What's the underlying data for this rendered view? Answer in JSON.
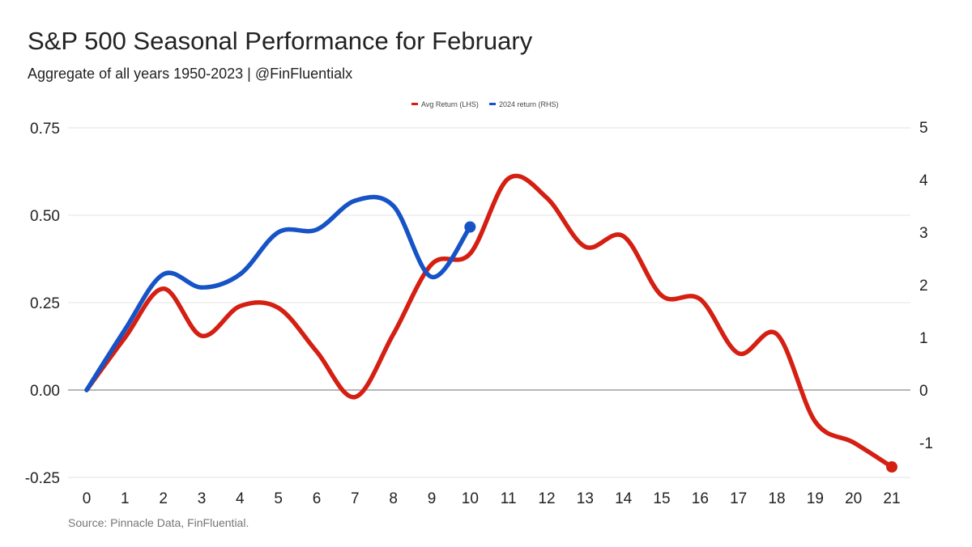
{
  "chart_data": {
    "type": "line",
    "title": "S&P 500 Seasonal Performance for February",
    "subtitle": "Aggregate of all years 1950-2023 | @FinFluentialx",
    "source": "Source: Pinnacle Data, FinFluential.",
    "legend_position": "top-center",
    "grid": true,
    "x": [
      0,
      1,
      2,
      3,
      4,
      5,
      6,
      7,
      8,
      9,
      10,
      11,
      12,
      13,
      14,
      15,
      16,
      17,
      18,
      19,
      20,
      21
    ],
    "x_ticks": [
      "0",
      "1",
      "2",
      "3",
      "4",
      "5",
      "6",
      "7",
      "8",
      "9",
      "10",
      "11",
      "12",
      "13",
      "14",
      "15",
      "16",
      "17",
      "18",
      "19",
      "20",
      "21"
    ],
    "xlim": [
      0,
      21
    ],
    "y_left": {
      "ylim": [
        -0.25,
        0.75
      ],
      "ticks": [
        -0.25,
        0,
        0.25,
        0.5,
        0.75
      ],
      "tick_labels": [
        "-0.25",
        "0.00",
        "0.25",
        "0.50",
        "0.75"
      ]
    },
    "y_right": {
      "ylim": [
        -1.5,
        5
      ],
      "ticks": [
        -1,
        0,
        1,
        2,
        3,
        4,
        5
      ],
      "tick_labels": [
        "-1",
        "0",
        "1",
        "2",
        "3",
        "4",
        "5"
      ]
    },
    "series": [
      {
        "name": "Avg Return (LHS)",
        "axis": "left",
        "color": "#d41f12",
        "x": [
          0,
          1,
          2,
          3,
          4,
          5,
          6,
          7,
          8,
          9,
          10,
          11,
          12,
          13,
          14,
          15,
          16,
          17,
          18,
          19,
          20,
          21
        ],
        "values": [
          0.0,
          0.15,
          0.29,
          0.155,
          0.24,
          0.235,
          0.11,
          -0.02,
          0.16,
          0.36,
          0.39,
          0.605,
          0.55,
          0.41,
          0.44,
          0.27,
          0.26,
          0.105,
          0.16,
          -0.09,
          -0.15,
          -0.22
        ],
        "end_marker": true
      },
      {
        "name": "2024 return (RHS)",
        "axis": "right",
        "color": "#1553c6",
        "x": [
          0,
          1,
          2,
          3,
          4,
          5,
          6,
          7,
          8,
          9,
          10
        ],
        "values": [
          0.0,
          1.15,
          2.2,
          1.95,
          2.2,
          3.0,
          3.05,
          3.6,
          3.5,
          2.15,
          3.1
        ],
        "end_marker": true
      }
    ]
  }
}
